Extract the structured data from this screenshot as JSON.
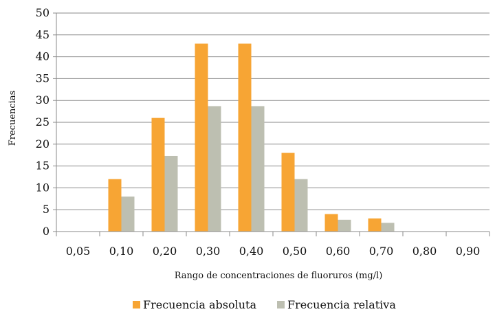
{
  "chart_data": {
    "type": "bar",
    "categories": [
      "0,05",
      "0,10",
      "0,20",
      "0,30",
      "0,40",
      "0,50",
      "0,60",
      "0,70",
      "0,80",
      "0,90"
    ],
    "series": [
      {
        "name": "Frecuencia absoluta",
        "color": "#F7A534",
        "values": [
          0,
          12,
          26,
          43,
          43,
          18,
          4,
          3,
          0,
          0
        ]
      },
      {
        "name": "Frecuencia relativa",
        "color": "#BDBFB1",
        "values": [
          0,
          8,
          17.3,
          28.7,
          28.7,
          12,
          2.7,
          2,
          0,
          0
        ]
      }
    ],
    "xlabel": "Rango de concentraciones de fluoruros (mg/l)",
    "ylabel": "Frecuencias",
    "ylim": [
      0,
      50
    ],
    "yticks": [
      0,
      5,
      10,
      15,
      20,
      25,
      30,
      35,
      40,
      45,
      50
    ],
    "grid": true,
    "legend": "bottom"
  }
}
